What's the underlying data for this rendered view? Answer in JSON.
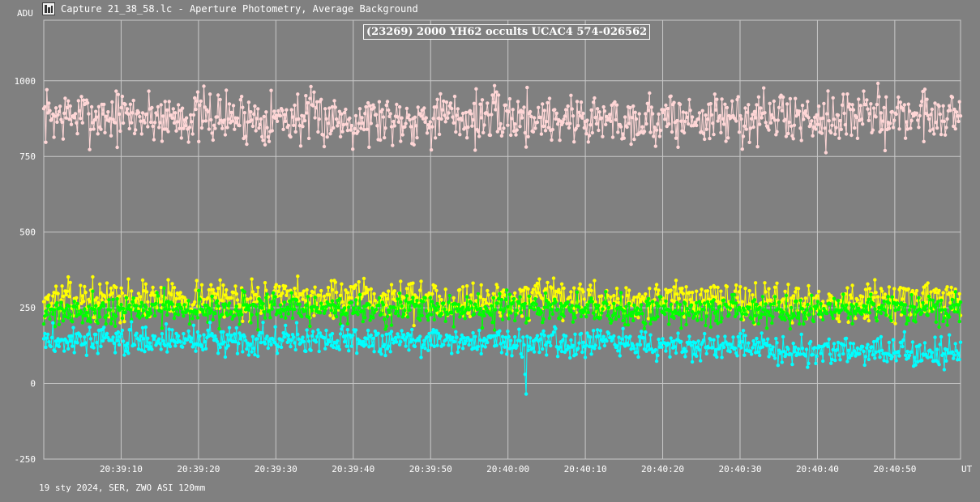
{
  "window": {
    "title": "Capture 21_38_58.lc - Aperture Photometry, Average Background",
    "icon": "lightcurve-app-icon"
  },
  "footer": {
    "info": "19 sty 2024, SER, ZWO ASI 120mm"
  },
  "colors": {
    "background": "#808080",
    "grid": "#c8c8c8",
    "text": "#ffffff",
    "series_target": "#00ffff",
    "series_comp1": "#ffff00",
    "series_comp2": "#00ff00",
    "series_background": "#ffd6d6"
  },
  "chart_data": {
    "type": "line",
    "title": "(23269) 2000 YH62 occults UCAC4 574-026562",
    "ylabel": "ADU",
    "xlabel": "UT",
    "ylim": [
      -250,
      1200
    ],
    "yticks": [
      -250,
      0,
      250,
      500,
      750,
      1000
    ],
    "x_range_seconds": [
      20,
      138.5
    ],
    "xticks": [
      {
        "t": 30,
        "label": "20:39:10"
      },
      {
        "t": 40,
        "label": "20:39:20"
      },
      {
        "t": 50,
        "label": "20:39:30"
      },
      {
        "t": 60,
        "label": "20:39:40"
      },
      {
        "t": 70,
        "label": "20:39:50"
      },
      {
        "t": 80,
        "label": "20:40:00"
      },
      {
        "t": 90,
        "label": "20:40:10"
      },
      {
        "t": 100,
        "label": "20:40:20"
      },
      {
        "t": 110,
        "label": "20:40:30"
      },
      {
        "t": 120,
        "label": "20:40:40"
      },
      {
        "t": 130,
        "label": "20:40:50"
      }
    ],
    "grid": true,
    "points_per_series": 900,
    "series": [
      {
        "key": "background",
        "color": "#ffd6d6",
        "mean": [
          885,
          880,
          875,
          880,
          870,
          880,
          890
        ],
        "spread": 130,
        "seed": 7
      },
      {
        "key": "comp1",
        "color": "#ffff00",
        "mean": [
          275,
          280,
          280,
          275,
          275,
          270,
          275
        ],
        "spread": 90,
        "seed": 13
      },
      {
        "key": "comp2",
        "color": "#00ff00",
        "mean": [
          240,
          245,
          245,
          245,
          240,
          240,
          245
        ],
        "spread": 75,
        "seed": 21
      },
      {
        "key": "target",
        "color": "#00ffff",
        "mean": [
          140,
          145,
          145,
          140,
          130,
          110,
          100
        ],
        "spread": 70,
        "seed": 3,
        "dips": [
          {
            "t": 82.3,
            "value": -30
          },
          {
            "t": 82.4,
            "value": -35
          },
          {
            "t": 82.2,
            "value": 30
          }
        ]
      }
    ]
  }
}
